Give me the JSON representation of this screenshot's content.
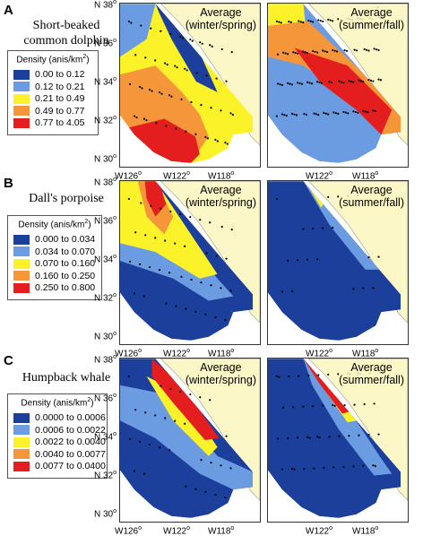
{
  "colors": {
    "land": "#fbf7c6",
    "ocean_white": "#ffffff",
    "bin1": "#1c3f9c",
    "bin2": "#6b9be0",
    "bin3": "#fbf22a",
    "bin4": "#f5963a",
    "bin5": "#e41e1e",
    "sighting": "#000000"
  },
  "map_titles": {
    "winter_line1": "Average",
    "winter_line2": "(winter/spring)",
    "summer_line1": "Average",
    "summer_line2": "(summer/fall)"
  },
  "axis": {
    "y_ticks": [
      "N 38",
      "N 36",
      "N 34",
      "N 32",
      "N 30"
    ],
    "x_ticks": [
      "W126",
      "W122",
      "W118"
    ],
    "degree": "o"
  },
  "panels": [
    {
      "letter": "A",
      "species_line1": "Short-beaked",
      "species_line2": "common dolphin",
      "legend_title": "Density (anis/km",
      "legend_title_sup": "2",
      "legend_title_end": ")",
      "bins": [
        "0.00  to  0.12",
        "0.12  to  0.21",
        "0.21  to  0.49",
        "0.49  to  0.77",
        "0.77  to  4.05"
      ]
    },
    {
      "letter": "B",
      "species_line1": "Dall's porpoise",
      "species_line2": "",
      "legend_title": "Density (anis/km",
      "legend_title_sup": "2",
      "legend_title_end": ")",
      "bins": [
        "0.000  to  0.034",
        "0.034  to  0.070",
        "0.070  to  0.160",
        "0.160  to  0.250",
        "0.250  to  0.800"
      ]
    },
    {
      "letter": "C",
      "species_line1": "Humpback whale",
      "species_line2": "",
      "legend_title": "Density (anis/km",
      "legend_title_sup": "2",
      "legend_title_end": ")",
      "bins": [
        "0.0000  to  0.0006",
        "0.0006  to  0.0022",
        "0.0022  to  0.0040",
        "0.0040  to  0.0077",
        "0.0077  to  0.0400"
      ]
    }
  ]
}
